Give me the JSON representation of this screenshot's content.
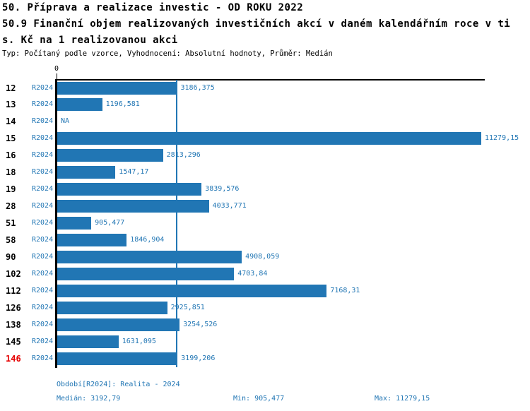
{
  "header": {
    "title_line1": "50. Příprava a realizace investic - OD ROKU 2022",
    "title_line2": "50.9 Finanční objem realizovaných investičních akcí v daném kalendářním roce v ti",
    "title_line3": "s. Kč na 1 realizovanou akci",
    "meta_line": "Typ: Počítaný podle vzorce, Vyhodnocení: Absolutní hodnoty, Průměr: Medián"
  },
  "chart_data": {
    "type": "bar",
    "orientation": "horizontal",
    "title": "50.9 Finanční objem realizovaných investičních akcí v daném kalendářním roce v tis. Kč na 1 realizovanou akci",
    "xlabel": "",
    "ylabel": "",
    "xlim": [
      0,
      11279.15
    ],
    "axis_tick_labels": [
      "0"
    ],
    "grid": false,
    "legend_position": "none",
    "series_name": "R2024",
    "categories": [
      "12",
      "13",
      "14",
      "15",
      "16",
      "18",
      "19",
      "28",
      "51",
      "58",
      "90",
      "102",
      "112",
      "126",
      "138",
      "145",
      "146"
    ],
    "values": [
      3186.375,
      1196.581,
      null,
      11279.15,
      2813.296,
      1547.17,
      3839.576,
      4033.771,
      905.477,
      1846.904,
      4908.059,
      4703.84,
      7168.31,
      2925.851,
      3254.526,
      1631.095,
      3199.206
    ],
    "value_labels": [
      "3186,375",
      "1196,581",
      "NA",
      "11279,15",
      "2813,296",
      "1547,17",
      "3839,576",
      "4033,771",
      "905,477",
      "1846,904",
      "4908,059",
      "4703,84",
      "7168,31",
      "2925,851",
      "3254,526",
      "1631,095",
      "3199,206"
    ],
    "highlighted_category": "146",
    "median_line_value": 3192.79
  },
  "colors": {
    "bar": "#2176b4",
    "blue_text": "#2176b4",
    "median_line": "#2176b4",
    "highlight_red": "#e60000",
    "axis": "#000000"
  },
  "footer": {
    "period_line": "Období[R2024]: Realita - 2024",
    "stats": [
      {
        "name": "median",
        "text": "Medián: 3192,79",
        "value": 3192.79
      },
      {
        "name": "min",
        "text": "Min: 905,477",
        "value": 905.477
      },
      {
        "name": "max",
        "text": "Max: 11279,15",
        "value": 11279.15
      }
    ]
  }
}
